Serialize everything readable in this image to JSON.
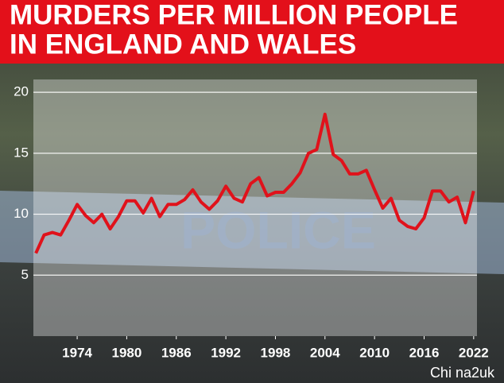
{
  "chart_data": {
    "type": "line",
    "title": [
      "MURDERS PER MILLION PEOPLE",
      "IN ENGLAND AND WALES"
    ],
    "background_text": "POLICE",
    "watermark": "Chi na2uk",
    "x": [
      1969,
      1970,
      1971,
      1972,
      1973,
      1974,
      1975,
      1976,
      1977,
      1978,
      1979,
      1980,
      1981,
      1982,
      1983,
      1984,
      1985,
      1986,
      1987,
      1988,
      1989,
      1990,
      1991,
      1992,
      1993,
      1994,
      1995,
      1996,
      1997,
      1998,
      1999,
      2000,
      2001,
      2002,
      2003,
      2004,
      2005,
      2006,
      2007,
      2008,
      2009,
      2010,
      2011,
      2012,
      2013,
      2014,
      2015,
      2016,
      2017,
      2018,
      2019,
      2020,
      2021,
      2022
    ],
    "series": [
      {
        "name": "Murders per million people",
        "color": "#e0121b",
        "values": [
          6.8,
          8.3,
          8.5,
          8.3,
          9.5,
          10.8,
          9.9,
          9.3,
          10.0,
          8.8,
          9.8,
          11.1,
          11.1,
          10.1,
          11.3,
          9.8,
          10.8,
          10.8,
          11.2,
          12.0,
          11.0,
          10.4,
          11.1,
          12.3,
          11.3,
          11.0,
          12.5,
          13.0,
          11.5,
          11.8,
          11.8,
          12.5,
          13.4,
          15.0,
          15.3,
          18.2,
          14.9,
          14.4,
          13.3,
          13.3,
          13.6,
          12.0,
          10.5,
          11.3,
          9.5,
          9.0,
          8.8,
          9.7,
          11.9,
          11.9,
          11.0,
          11.4,
          9.3,
          11.9
        ]
      }
    ],
    "xlim": [
      1968.7,
      2022.4
    ],
    "xticks": [
      1974,
      1980,
      1986,
      1992,
      1998,
      2004,
      2010,
      2016,
      2022
    ],
    "ylim": [
      0,
      20.4
    ],
    "yticks": [
      5,
      10,
      15,
      20
    ],
    "grid": true
  }
}
